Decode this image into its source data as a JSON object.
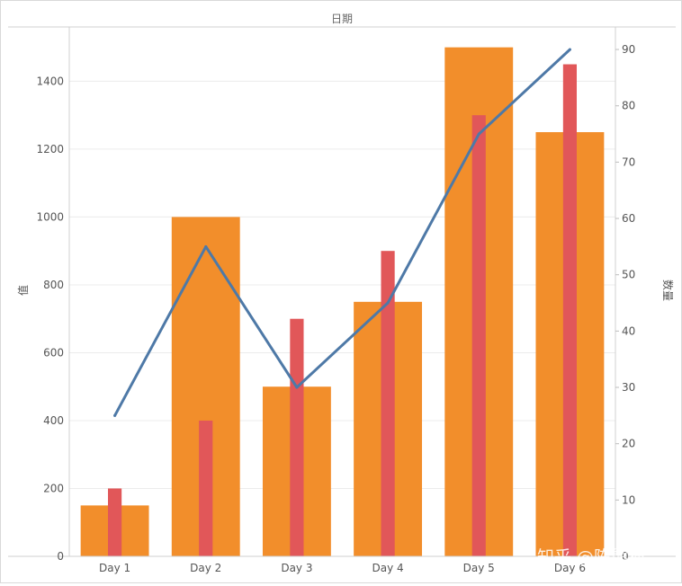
{
  "chart_data": {
    "type": "bar",
    "header": "日期",
    "categories": [
      "Day 1",
      "Day 2",
      "Day 3",
      "Day 4",
      "Day 5",
      "Day 6"
    ],
    "ylabel_left": "值",
    "ylabel_right": "数量",
    "ylim_left": [
      0,
      1560
    ],
    "ylim_right": [
      0,
      94
    ],
    "yticks_left": [
      0,
      200,
      400,
      600,
      800,
      1000,
      1200,
      1400
    ],
    "yticks_right": [
      0,
      10,
      20,
      30,
      40,
      50,
      60,
      70,
      80,
      90
    ],
    "grid": true,
    "series": [
      {
        "axis": "left",
        "mark": "bar-wide",
        "color": "#F28E2B",
        "values": [
          150,
          1000,
          500,
          750,
          1500,
          1250
        ]
      },
      {
        "axis": "left",
        "mark": "bar-narrow",
        "color": "#E15759",
        "values": [
          200,
          400,
          700,
          900,
          1300,
          1450
        ]
      },
      {
        "axis": "right",
        "mark": "line",
        "color": "#4E79A7",
        "values": [
          25,
          55,
          30,
          45,
          75,
          90
        ]
      }
    ]
  },
  "watermark": "知乎 @陈熊猫"
}
